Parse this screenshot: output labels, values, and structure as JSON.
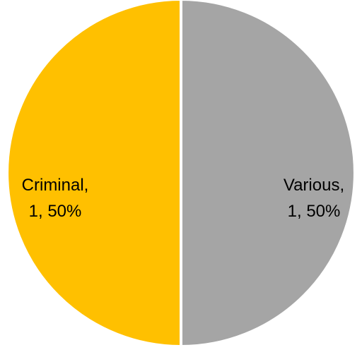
{
  "chart_data": {
    "type": "pie",
    "categories": [
      "Criminal",
      "Various"
    ],
    "values": [
      1,
      1
    ],
    "percentages": [
      "50%",
      "50%"
    ],
    "colors": [
      "#FFC000",
      "#A5A5A5"
    ],
    "labels": [
      {
        "line1": "Criminal,",
        "line2": "1, 50%"
      },
      {
        "line1": "Various,",
        "line2": "1, 50%"
      }
    ],
    "start_angle_degrees": 0,
    "direction": "counterclockwise",
    "legend": "none"
  }
}
